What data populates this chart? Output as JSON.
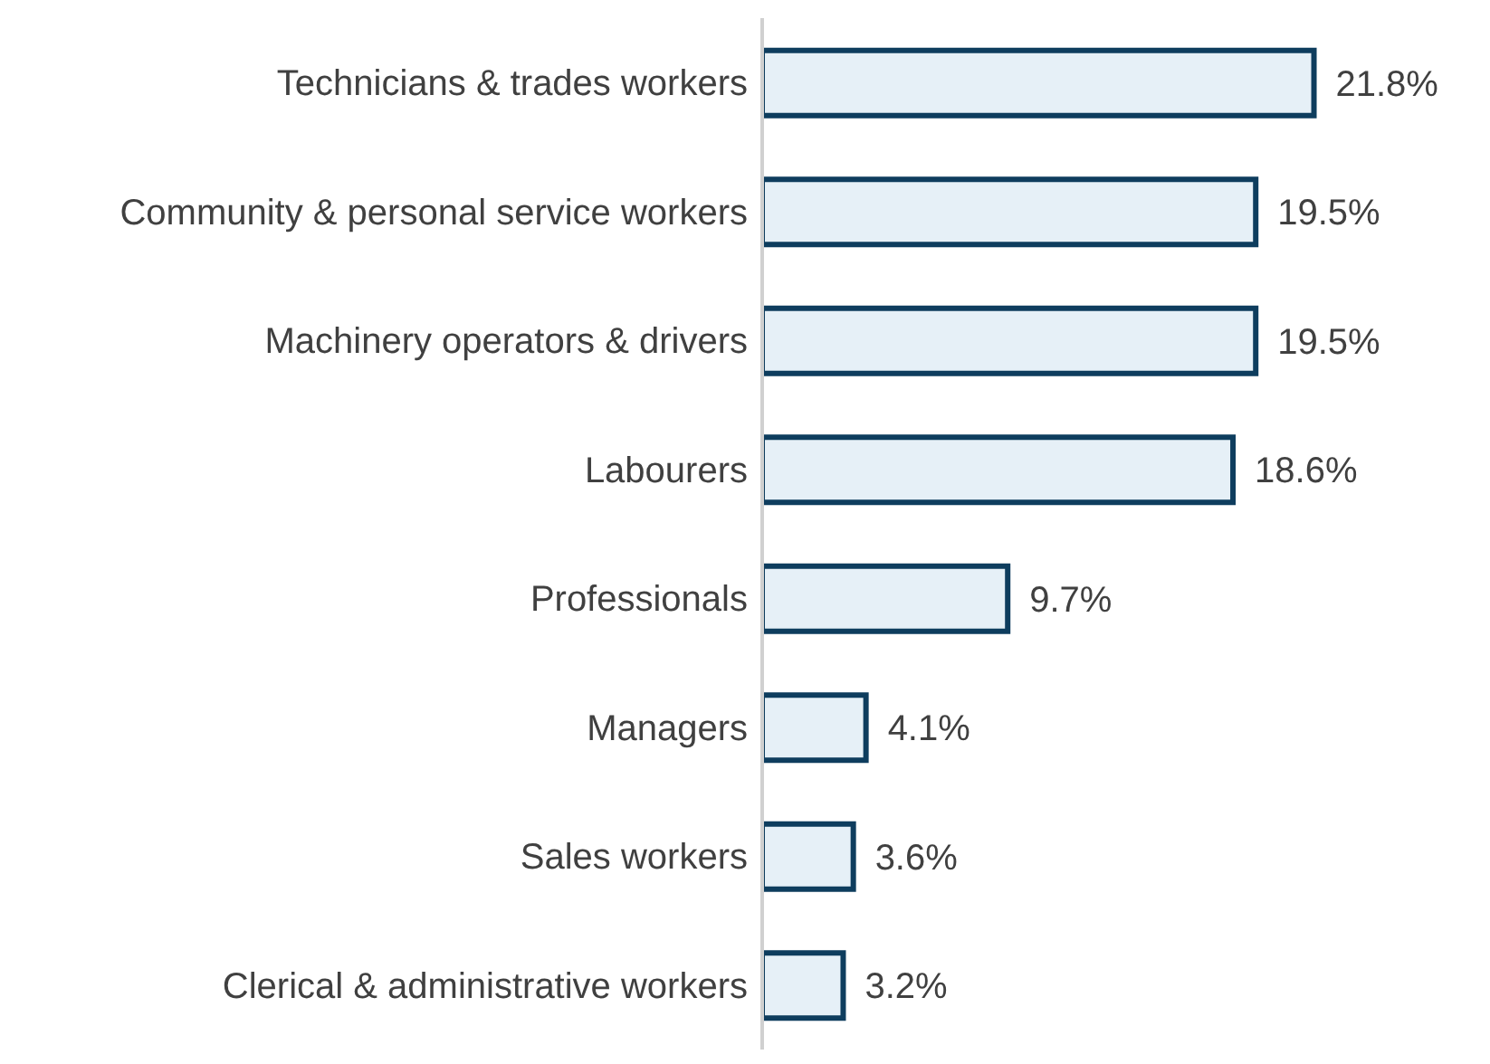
{
  "chart_data": {
    "type": "bar",
    "orientation": "horizontal",
    "categories": [
      "Technicians & trades workers",
      "Community & personal service workers",
      "Machinery operators & drivers",
      "Labourers",
      "Professionals",
      "Managers",
      "Sales workers",
      "Clerical & administrative workers"
    ],
    "values": [
      21.8,
      19.5,
      19.5,
      18.6,
      9.7,
      4.1,
      3.6,
      3.2
    ],
    "value_labels": [
      "21.8%",
      "19.5%",
      "19.5%",
      "18.6%",
      "9.7%",
      "4.1%",
      "3.6%",
      "3.2%"
    ],
    "color": "#e6f0f7",
    "grid": false,
    "legend": false
  }
}
